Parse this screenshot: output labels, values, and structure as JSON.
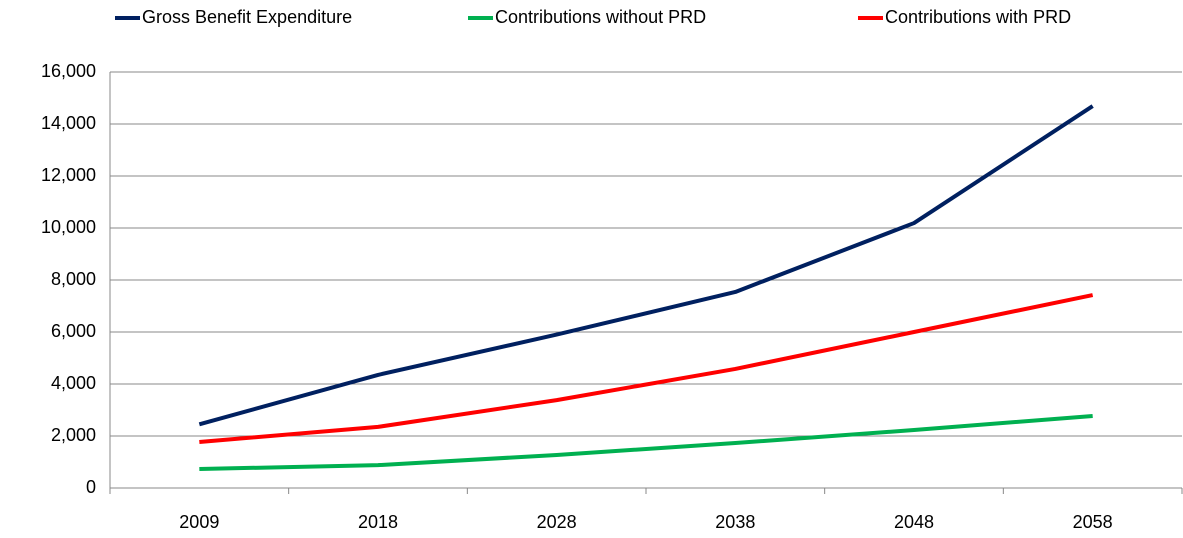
{
  "chart_data": {
    "type": "line",
    "categories": [
      "2009",
      "2018",
      "2028",
      "2038",
      "2048",
      "2058"
    ],
    "series": [
      {
        "name": "Gross Benefit Expenditure",
        "color": "#002060",
        "values": [
          2450,
          4350,
          5900,
          7540,
          10190,
          14690
        ]
      },
      {
        "name": "Contributions without PRD",
        "color": "#00b050",
        "values": [
          730,
          880,
          1270,
          1730,
          2230,
          2770
        ]
      },
      {
        "name": "Contributions with PRD",
        "color": "#ff0000",
        "values": [
          1770,
          2350,
          3380,
          4580,
          6000,
          7420
        ]
      }
    ],
    "ylim": [
      0,
      16000
    ],
    "yticks": [
      0,
      {
        "value": 2000,
        "label": "2,000"
      },
      {
        "value": 4000,
        "label": "4,000"
      },
      {
        "value": 6000,
        "label": "6,000"
      },
      {
        "value": 8000,
        "label": "8,000"
      },
      {
        "value": 10000,
        "label": "10,000"
      },
      {
        "value": 12000,
        "label": "12,000"
      },
      {
        "value": 14000,
        "label": "14,000"
      },
      {
        "value": 16000,
        "label": "16,000"
      }
    ],
    "grid": true,
    "legend": "top"
  }
}
